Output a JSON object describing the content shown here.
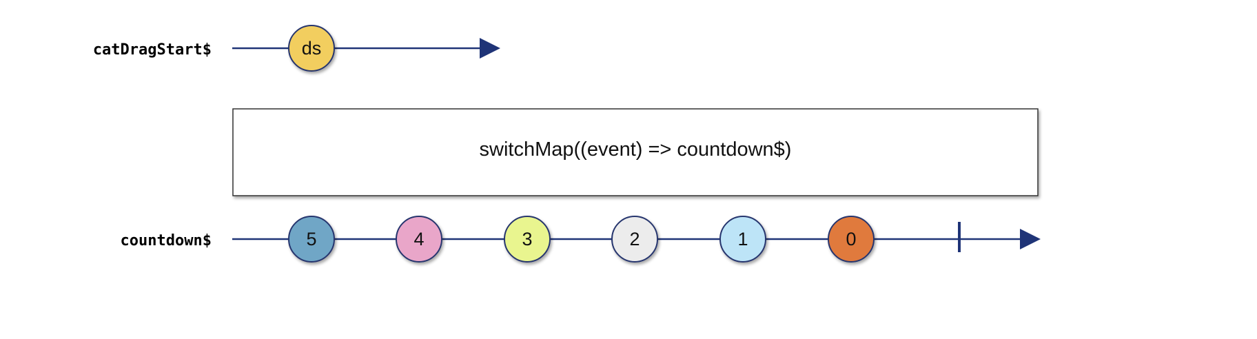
{
  "streams": [
    {
      "name": "catDragStart$",
      "marbles": [
        {
          "label": "ds",
          "color": "#F2CE5E"
        }
      ]
    },
    {
      "name": "countdown$",
      "marbles": [
        {
          "label": "5",
          "color": "#6FA6C6"
        },
        {
          "label": "4",
          "color": "#E9A6C9"
        },
        {
          "label": "3",
          "color": "#E9F58F"
        },
        {
          "label": "2",
          "color": "#ECECEC"
        },
        {
          "label": "1",
          "color": "#BDE4F7"
        },
        {
          "label": "0",
          "color": "#E07A3E"
        }
      ],
      "completed": true
    }
  ],
  "operator": {
    "label": "switchMap((event) => countdown$)"
  },
  "colors": {
    "timeline": "#1F3477",
    "marble_border": "#27366E",
    "operator_border": "#333333"
  }
}
